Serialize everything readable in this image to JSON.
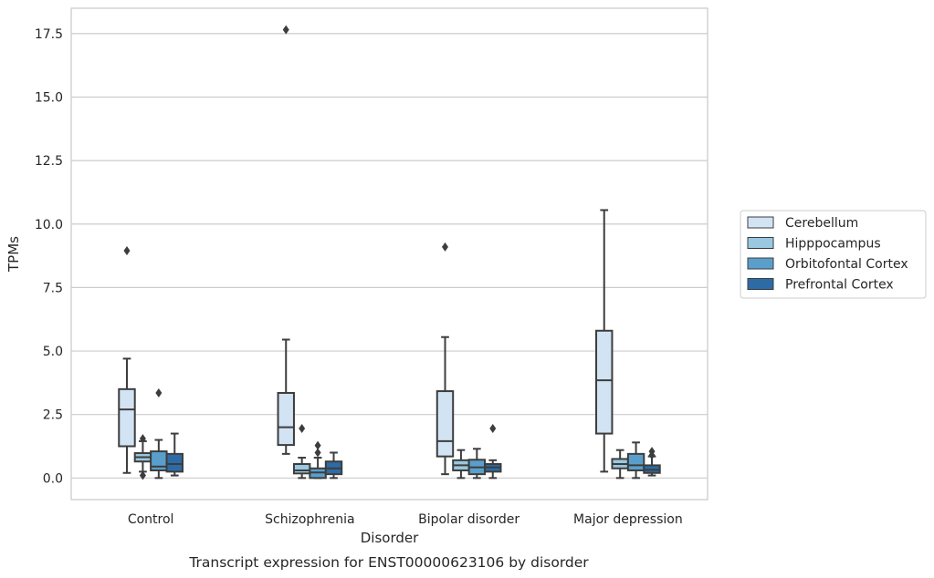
{
  "chart_data": {
    "type": "box",
    "title": "",
    "caption": "Transcript expression for ENST00000623106 by disorder",
    "xlabel": "Disorder",
    "ylabel": "TPMs",
    "ylim": [
      -0.85,
      18.5
    ],
    "yticks": [
      "0.0",
      "2.5",
      "5.0",
      "7.5",
      "10.0",
      "12.5",
      "15.0",
      "17.5"
    ],
    "categories": [
      "Control",
      "Schizophrenia",
      "Bipolar disorder",
      "Major depression"
    ],
    "grid": "horizontal",
    "legend_position": "right",
    "series": [
      {
        "name": "Cerebellum",
        "color": "#d2e3f3",
        "boxes": [
          {
            "whislo": 0.2,
            "q1": 1.25,
            "med": 2.7,
            "q3": 3.5,
            "whishi": 4.7,
            "fliers": [
              8.95
            ]
          },
          {
            "whislo": 0.95,
            "q1": 1.3,
            "med": 2.0,
            "q3": 3.35,
            "whishi": 5.45,
            "fliers": [
              17.65
            ]
          },
          {
            "whislo": 0.15,
            "q1": 0.85,
            "med": 1.45,
            "q3": 3.42,
            "whishi": 5.55,
            "fliers": [
              9.1
            ]
          },
          {
            "whislo": 0.25,
            "q1": 1.75,
            "med": 3.85,
            "q3": 5.8,
            "whishi": 10.55,
            "fliers": []
          }
        ]
      },
      {
        "name": "Hipppocampus",
        "color": "#9ac8e0",
        "boxes": [
          {
            "whislo": 0.25,
            "q1": 0.65,
            "med": 0.82,
            "q3": 0.98,
            "whishi": 1.45,
            "fliers": [
              0.1,
              1.55
            ]
          },
          {
            "whislo": 0.0,
            "q1": 0.18,
            "med": 0.3,
            "q3": 0.55,
            "whishi": 0.8,
            "fliers": [
              1.95
            ]
          },
          {
            "whislo": 0.0,
            "q1": 0.3,
            "med": 0.5,
            "q3": 0.7,
            "whishi": 1.1,
            "fliers": []
          },
          {
            "whislo": 0.0,
            "q1": 0.38,
            "med": 0.55,
            "q3": 0.75,
            "whishi": 1.1,
            "fliers": []
          }
        ]
      },
      {
        "name": "Orbitofontal Cortex",
        "color": "#5a9fcb",
        "boxes": [
          {
            "whislo": 0.0,
            "q1": 0.3,
            "med": 0.45,
            "q3": 1.05,
            "whishi": 1.5,
            "fliers": [
              3.35
            ]
          },
          {
            "whislo": 0.0,
            "q1": 0.0,
            "med": 0.22,
            "q3": 0.38,
            "whishi": 0.8,
            "fliers": [
              1.0,
              1.28
            ]
          },
          {
            "whislo": 0.0,
            "q1": 0.15,
            "med": 0.42,
            "q3": 0.72,
            "whishi": 1.15,
            "fliers": []
          },
          {
            "whislo": 0.0,
            "q1": 0.3,
            "med": 0.5,
            "q3": 0.95,
            "whishi": 1.4,
            "fliers": []
          }
        ]
      },
      {
        "name": "Prefrontal Cortex",
        "color": "#2d6ba6",
        "boxes": [
          {
            "whislo": 0.1,
            "q1": 0.25,
            "med": 0.55,
            "q3": 0.95,
            "whishi": 1.75,
            "fliers": []
          },
          {
            "whislo": 0.0,
            "q1": 0.15,
            "med": 0.38,
            "q3": 0.65,
            "whishi": 1.0,
            "fliers": []
          },
          {
            "whislo": 0.0,
            "q1": 0.25,
            "med": 0.42,
            "q3": 0.55,
            "whishi": 0.7,
            "fliers": [
              1.95
            ]
          },
          {
            "whislo": 0.1,
            "q1": 0.2,
            "med": 0.32,
            "q3": 0.5,
            "whishi": 0.85,
            "fliers": [
              0.9,
              1.05
            ]
          }
        ]
      }
    ]
  }
}
